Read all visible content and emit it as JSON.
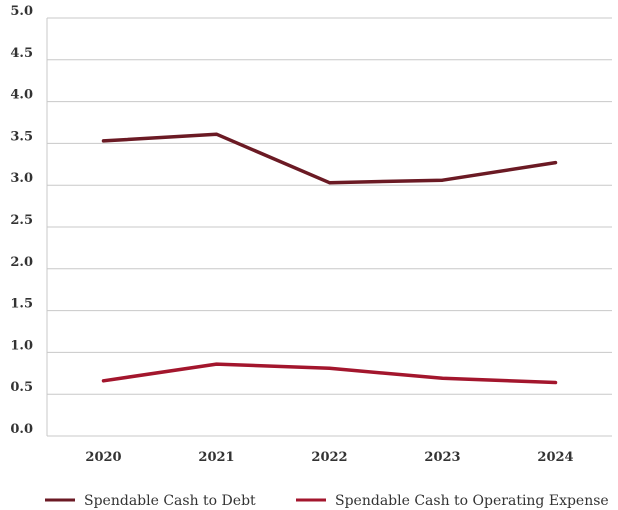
{
  "chart_data": {
    "type": "line",
    "x": [
      "2020",
      "2021",
      "2022",
      "2023",
      "2024"
    ],
    "ylim": [
      0,
      5
    ],
    "yticks": [
      "0.0",
      "0.5",
      "1.0",
      "1.5",
      "2.0",
      "2.5",
      "3.0",
      "3.5",
      "4.0",
      "4.5",
      "5.0"
    ],
    "grid": true,
    "legend_position": "bottom",
    "series": [
      {
        "name": "Spendable Cash to Debt",
        "color": "#6b1a24",
        "values": [
          3.53,
          3.61,
          3.03,
          3.06,
          3.27
        ]
      },
      {
        "name": "Spendable Cash to Operating Expense",
        "color": "#a3162d",
        "values": [
          0.66,
          0.86,
          0.81,
          0.69,
          0.64
        ]
      }
    ]
  }
}
